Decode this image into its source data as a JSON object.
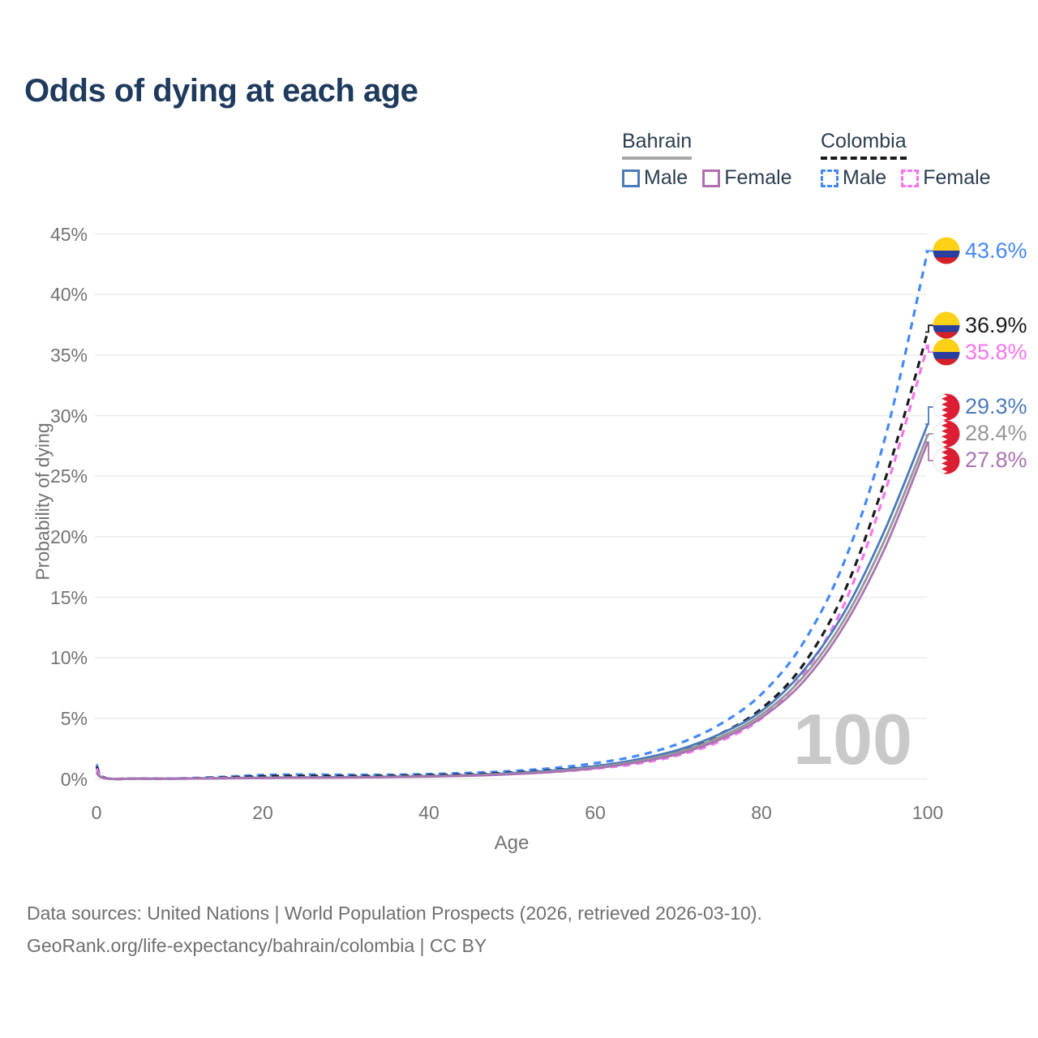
{
  "title": "Odds of dying at each age",
  "legend": {
    "groups": [
      {
        "name": "Bahrain",
        "line_style": "solid",
        "underline_color": "#a6a6a6",
        "items": [
          {
            "label": "Male",
            "color": "#4b7bbb"
          },
          {
            "label": "Female",
            "color": "#b06fae"
          }
        ]
      },
      {
        "name": "Colombia",
        "line_style": "dashed",
        "underline_color": "#1a1a1a",
        "items": [
          {
            "label": "Male",
            "color": "#4489f6"
          },
          {
            "label": "Female",
            "color": "#f973ef"
          }
        ]
      }
    ]
  },
  "age_counter": "100",
  "footer": {
    "line1": "Data sources: United Nations | World Population Prospects (2026, retrieved 2026-03-10).",
    "line2": "GeoRank.org/life-expectancy/bahrain/colombia | CC BY"
  },
  "flag_colors": {
    "colombia": {
      "yellow": "#fcd116",
      "blue": "#2a3f9e",
      "red": "#d42029"
    },
    "bahrain": {
      "white": "#ffffff",
      "red": "#dc1e35",
      "edge": "#e3e3e3"
    }
  },
  "chart_data": {
    "type": "line",
    "title": "Odds of dying at each age",
    "xlabel": "Age",
    "ylabel": "Probability of dying",
    "xlim": [
      0,
      100
    ],
    "ylim": [
      0,
      45
    ],
    "grid": "horizontal",
    "legend_position": "top-right",
    "xticks": [
      0,
      20,
      40,
      60,
      80,
      100
    ],
    "yticks": [
      "0%",
      "5%",
      "10%",
      "15%",
      "20%",
      "25%",
      "30%",
      "35%",
      "40%",
      "45%"
    ],
    "x": [
      0,
      1,
      5,
      10,
      15,
      20,
      25,
      30,
      35,
      40,
      45,
      50,
      55,
      60,
      65,
      70,
      75,
      80,
      85,
      90,
      95,
      100
    ],
    "series": [
      {
        "name": "Colombia Male",
        "country": "colombia",
        "sex": "male",
        "color": "#4489f6",
        "dash": true,
        "end_label": "43.6%",
        "values": [
          1.2,
          0.09,
          0.04,
          0.04,
          0.16,
          0.32,
          0.36,
          0.34,
          0.34,
          0.4,
          0.5,
          0.65,
          0.9,
          1.3,
          1.9,
          2.9,
          4.5,
          7.0,
          11.2,
          18.0,
          28.5,
          43.6
        ]
      },
      {
        "name": "Colombia Total",
        "country": "colombia",
        "sex": "both",
        "color": "#1b1b1b",
        "dash": true,
        "end_label": "36.9%",
        "values": [
          1.0,
          0.08,
          0.03,
          0.03,
          0.11,
          0.21,
          0.24,
          0.23,
          0.25,
          0.3,
          0.38,
          0.52,
          0.73,
          1.05,
          1.55,
          2.35,
          3.7,
          5.8,
          9.4,
          15.5,
          25.0,
          36.9
        ]
      },
      {
        "name": "Colombia Female",
        "country": "colombia",
        "sex": "female",
        "color": "#f973ef",
        "dash": true,
        "end_label": "35.8%",
        "values": [
          0.85,
          0.07,
          0.03,
          0.03,
          0.07,
          0.1,
          0.12,
          0.13,
          0.16,
          0.22,
          0.29,
          0.42,
          0.58,
          0.85,
          1.25,
          1.95,
          3.1,
          5.0,
          8.6,
          14.5,
          24.0,
          35.8
        ]
      },
      {
        "name": "Bahrain Male",
        "country": "bahrain",
        "sex": "male",
        "color": "#4b7bbb",
        "dash": false,
        "end_label": "29.3%",
        "values": [
          0.6,
          0.05,
          0.02,
          0.02,
          0.06,
          0.11,
          0.13,
          0.15,
          0.18,
          0.24,
          0.33,
          0.48,
          0.7,
          1.05,
          1.6,
          2.4,
          3.7,
          5.6,
          8.9,
          13.8,
          20.8,
          29.3
        ]
      },
      {
        "name": "Bahrain Total",
        "country": "bahrain",
        "sex": "both",
        "color": "#979797",
        "dash": false,
        "end_label": "28.4%",
        "values": [
          0.55,
          0.05,
          0.02,
          0.02,
          0.05,
          0.09,
          0.11,
          0.13,
          0.16,
          0.21,
          0.29,
          0.43,
          0.63,
          0.95,
          1.45,
          2.2,
          3.45,
          5.3,
          8.4,
          13.2,
          20.0,
          28.4
        ]
      },
      {
        "name": "Bahrain Female",
        "country": "bahrain",
        "sex": "female",
        "color": "#a974b1",
        "dash": false,
        "end_label": "27.8%",
        "values": [
          0.5,
          0.04,
          0.02,
          0.02,
          0.04,
          0.07,
          0.09,
          0.11,
          0.14,
          0.19,
          0.26,
          0.39,
          0.58,
          0.88,
          1.35,
          2.05,
          3.25,
          5.05,
          8.0,
          12.7,
          19.3,
          27.8
        ]
      }
    ]
  }
}
